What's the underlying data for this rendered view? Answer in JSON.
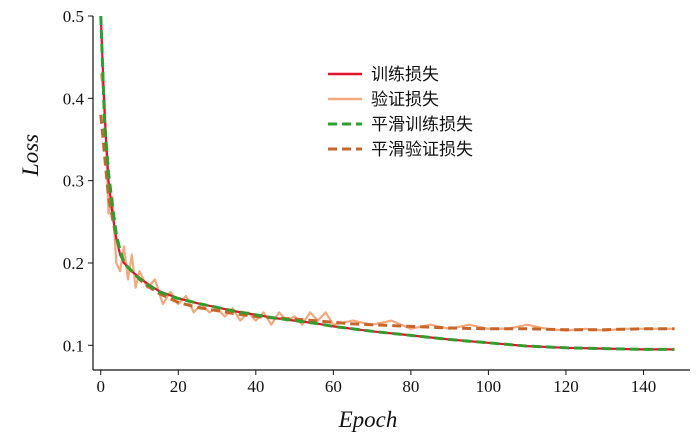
{
  "chart_data": {
    "type": "line",
    "title": "",
    "xlabel": "Epoch",
    "ylabel": "Loss",
    "xlim": [
      -2,
      152
    ],
    "ylim": [
      0.07,
      0.5
    ],
    "xticks": [
      0,
      20,
      40,
      60,
      80,
      100,
      120,
      140
    ],
    "yticks": [
      0.1,
      0.2,
      0.3,
      0.4,
      0.5
    ],
    "legend_position": "upper-right",
    "grid": false,
    "series": [
      {
        "name": "训练损失",
        "color": "#e3122f",
        "style": "solid",
        "x": [
          0,
          1,
          2,
          3,
          4,
          5,
          6,
          8,
          10,
          12,
          15,
          20,
          25,
          30,
          35,
          40,
          45,
          50,
          55,
          60,
          70,
          80,
          90,
          100,
          110,
          120,
          130,
          140,
          148
        ],
        "y": [
          0.5,
          0.38,
          0.3,
          0.26,
          0.23,
          0.21,
          0.2,
          0.19,
          0.182,
          0.175,
          0.166,
          0.157,
          0.151,
          0.146,
          0.141,
          0.137,
          0.133,
          0.13,
          0.127,
          0.123,
          0.117,
          0.112,
          0.107,
          0.103,
          0.099,
          0.097,
          0.096,
          0.095,
          0.095
        ]
      },
      {
        "name": "验证损失",
        "color": "#f2a97c",
        "style": "solid",
        "x": [
          0,
          1,
          2,
          3,
          4,
          5,
          6,
          7,
          8,
          9,
          10,
          12,
          14,
          16,
          18,
          20,
          22,
          24,
          26,
          28,
          30,
          32,
          34,
          36,
          38,
          40,
          42,
          44,
          46,
          48,
          50,
          52,
          54,
          56,
          58,
          60,
          65,
          70,
          75,
          80,
          85,
          90,
          95,
          100,
          105,
          110,
          115,
          120,
          125,
          130,
          135,
          140,
          145,
          148
        ],
        "y": [
          0.43,
          0.4,
          0.26,
          0.28,
          0.2,
          0.19,
          0.22,
          0.18,
          0.21,
          0.17,
          0.19,
          0.17,
          0.18,
          0.15,
          0.165,
          0.15,
          0.16,
          0.14,
          0.15,
          0.14,
          0.145,
          0.135,
          0.145,
          0.13,
          0.14,
          0.13,
          0.14,
          0.125,
          0.14,
          0.13,
          0.135,
          0.125,
          0.14,
          0.13,
          0.14,
          0.125,
          0.13,
          0.125,
          0.13,
          0.12,
          0.125,
          0.12,
          0.125,
          0.12,
          0.12,
          0.125,
          0.12,
          0.118,
          0.12,
          0.118,
          0.12,
          0.12,
          0.12,
          0.12
        ]
      },
      {
        "name": "平滑训练损失",
        "color": "#2ca02c",
        "style": "dashed",
        "x": [
          0,
          1,
          2,
          3,
          4,
          5,
          6,
          8,
          10,
          12,
          15,
          20,
          25,
          30,
          35,
          40,
          45,
          50,
          55,
          60,
          70,
          80,
          90,
          100,
          110,
          120,
          130,
          140,
          148
        ],
        "y": [
          0.5,
          0.37,
          0.31,
          0.27,
          0.235,
          0.215,
          0.2,
          0.19,
          0.181,
          0.174,
          0.165,
          0.157,
          0.151,
          0.146,
          0.141,
          0.137,
          0.133,
          0.13,
          0.127,
          0.123,
          0.117,
          0.112,
          0.107,
          0.103,
          0.099,
          0.097,
          0.096,
          0.095,
          0.095
        ]
      },
      {
        "name": "平滑验证损失",
        "color": "#c9652a",
        "style": "dashed",
        "x": [
          0,
          2,
          4,
          6,
          8,
          10,
          12,
          15,
          20,
          25,
          30,
          35,
          40,
          45,
          50,
          55,
          60,
          65,
          70,
          80,
          90,
          100,
          110,
          120,
          130,
          140,
          148
        ],
        "y": [
          0.38,
          0.28,
          0.23,
          0.2,
          0.19,
          0.18,
          0.172,
          0.163,
          0.152,
          0.146,
          0.142,
          0.138,
          0.135,
          0.133,
          0.132,
          0.13,
          0.128,
          0.126,
          0.125,
          0.123,
          0.121,
          0.12,
          0.12,
          0.119,
          0.119,
          0.12,
          0.12
        ]
      }
    ]
  }
}
